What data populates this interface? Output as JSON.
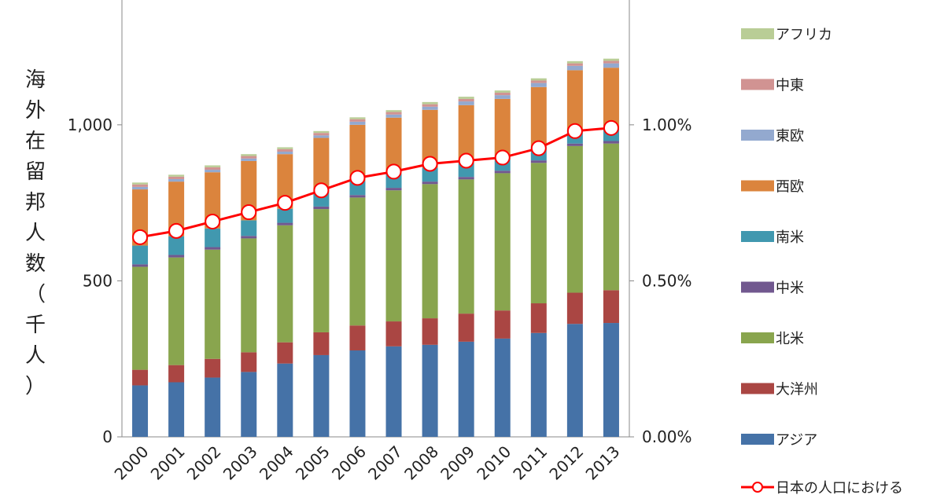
{
  "chart_data": {
    "type": "bar",
    "stacked": true,
    "title": "",
    "xlabel": "",
    "ylabel": "海外在留邦人数（千人）",
    "categories": [
      "2000",
      "2001",
      "2002",
      "2003",
      "2004",
      "2005",
      "2006",
      "2007",
      "2008",
      "2009",
      "2010",
      "2011",
      "2012",
      "2013"
    ],
    "ylim": [
      0,
      1400
    ],
    "y_ticks": [
      {
        "value": 0,
        "label": "0"
      },
      {
        "value": 500,
        "label": "500"
      },
      {
        "value": 1000,
        "label": "1,000"
      }
    ],
    "y2lim": [
      0,
      1.4
    ],
    "y2_ticks": [
      {
        "value": 0,
        "label": "0.00%"
      },
      {
        "value": 0.5,
        "label": "0.50%"
      },
      {
        "value": 1.0,
        "label": "1.00%"
      }
    ],
    "series": [
      {
        "name": "アジア",
        "color": "#4572A7",
        "values": [
          165,
          175,
          190,
          208,
          235,
          262,
          277,
          290,
          295,
          305,
          315,
          333,
          362,
          365
        ]
      },
      {
        "name": "大洋州",
        "color": "#AA4643",
        "values": [
          50,
          55,
          60,
          63,
          68,
          73,
          80,
          80,
          85,
          90,
          90,
          95,
          100,
          105
        ]
      },
      {
        "name": "北米",
        "color": "#89A54E",
        "values": [
          330,
          345,
          350,
          365,
          375,
          395,
          410,
          420,
          430,
          430,
          440,
          450,
          470,
          470
        ]
      },
      {
        "name": "中米",
        "color": "#71588F",
        "values": [
          8,
          8,
          8,
          8,
          8,
          8,
          8,
          8,
          8,
          8,
          8,
          8,
          8,
          8
        ]
      },
      {
        "name": "南米",
        "color": "#4198AF",
        "values": [
          60,
          60,
          60,
          50,
          45,
          45,
          45,
          45,
          45,
          45,
          45,
          45,
          45,
          45
        ]
      },
      {
        "name": "西欧",
        "color": "#DB843D",
        "values": [
          180,
          175,
          180,
          190,
          175,
          175,
          180,
          180,
          185,
          185,
          185,
          190,
          190,
          190
        ]
      },
      {
        "name": "東欧",
        "color": "#93A9CF",
        "values": [
          8,
          8,
          8,
          8,
          8,
          8,
          10,
          10,
          10,
          12,
          12,
          13,
          14,
          14
        ]
      },
      {
        "name": "中東",
        "color": "#D19392",
        "values": [
          8,
          8,
          8,
          8,
          8,
          8,
          8,
          8,
          8,
          8,
          8,
          8,
          8,
          8
        ]
      },
      {
        "name": "アフリカ",
        "color": "#B9CD96",
        "values": [
          6,
          6,
          6,
          6,
          6,
          6,
          6,
          6,
          7,
          7,
          7,
          7,
          7,
          7
        ]
      }
    ],
    "line_series": {
      "name": "日本の人口における",
      "color": "#FF0000",
      "axis": "right",
      "values": [
        0.64,
        0.66,
        0.69,
        0.72,
        0.75,
        0.79,
        0.83,
        0.85,
        0.875,
        0.885,
        0.895,
        0.925,
        0.98,
        0.99
      ]
    }
  }
}
